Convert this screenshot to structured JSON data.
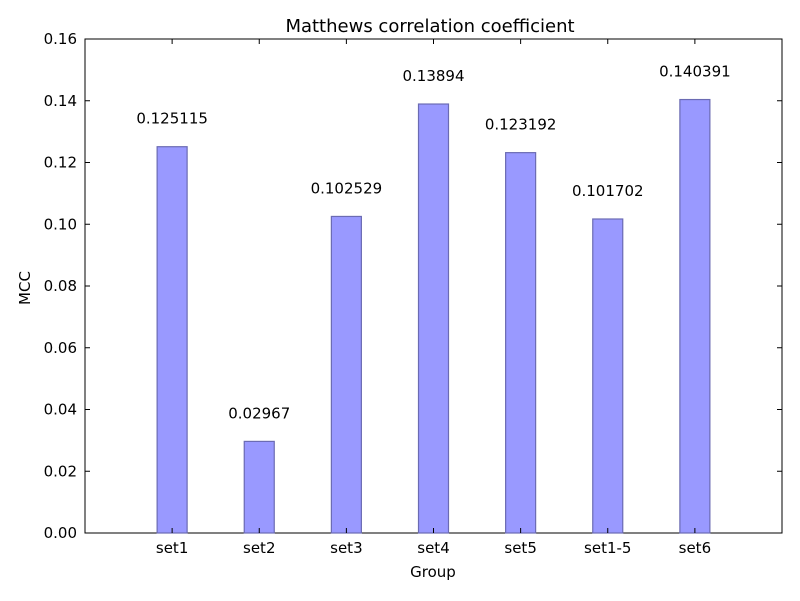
{
  "chart_data": {
    "type": "bar",
    "title": "Matthews correlation coefficient",
    "xlabel": "Group",
    "ylabel": "MCC",
    "categories": [
      "set1",
      "set2",
      "set3",
      "set4",
      "set5",
      "set1-5",
      "set6"
    ],
    "values": [
      0.125115,
      0.02967,
      0.102529,
      0.13894,
      0.123192,
      0.101702,
      0.140391
    ],
    "value_labels": [
      "0.125115",
      "0.02967",
      "0.102529",
      "0.13894",
      "0.123192",
      "0.101702",
      "0.140391"
    ],
    "ylim": [
      0,
      0.16
    ],
    "yticks": [
      "0.00",
      "0.02",
      "0.04",
      "0.06",
      "0.08",
      "0.10",
      "0.12",
      "0.14",
      "0.16"
    ],
    "grid": false,
    "legend": "none",
    "bar_color": "#9999ff",
    "bar_edge_color": "#6b6bb3"
  }
}
